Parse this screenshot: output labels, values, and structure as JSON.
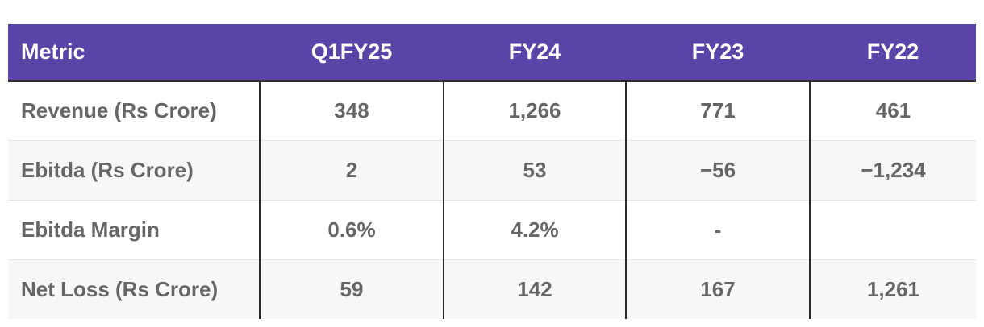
{
  "table": {
    "headers": [
      "Metric",
      "Q1FY25",
      "FY24",
      "FY23",
      "FY22"
    ],
    "rows": [
      [
        "Revenue (Rs Crore)",
        "348",
        "1,266",
        "771",
        "461"
      ],
      [
        "Ebitda (Rs Crore)",
        "2",
        "53",
        "−56",
        "−1,234"
      ],
      [
        "Ebitda Margin",
        "0.6%",
        "4.2%",
        "-",
        ""
      ],
      [
        "Net Loss (Rs Crore)",
        "59",
        "142",
        "167",
        "1,261"
      ]
    ]
  },
  "colors": {
    "header_background": "#5b44a8",
    "header_text": "#ffffff",
    "body_text": "#666666",
    "row_alt_background": "#f7f7f7"
  }
}
